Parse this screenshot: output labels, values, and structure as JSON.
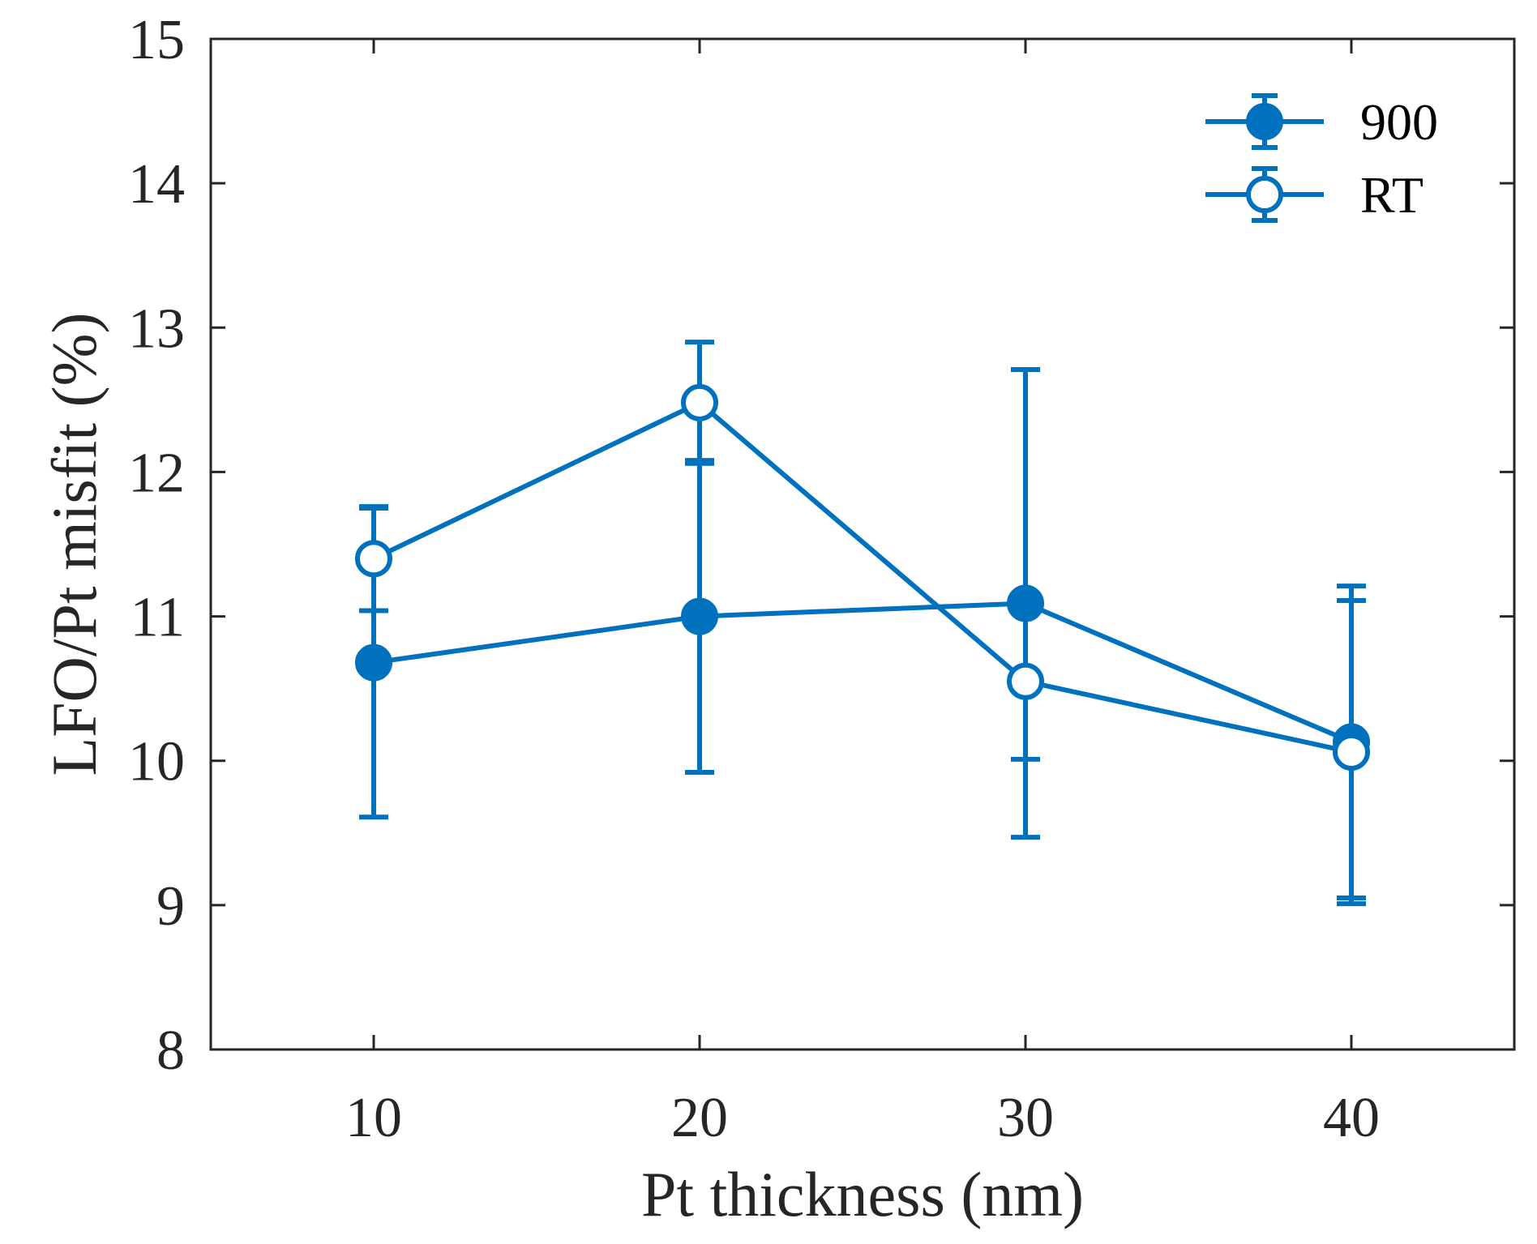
{
  "chart_data": {
    "type": "line",
    "title": "",
    "xlabel": "Pt thickness (nm)",
    "ylabel": "LFO/Pt misfit (%)",
    "xlim": [
      5,
      45
    ],
    "ylim": [
      8,
      15
    ],
    "xticks": [
      10,
      20,
      30,
      40
    ],
    "yticks": [
      8,
      9,
      10,
      11,
      12,
      13,
      14,
      15
    ],
    "grid": false,
    "legend_position": "top-right",
    "series_color": "#0072BD",
    "axis_color": "#262626",
    "series": [
      {
        "name": "900",
        "marker": "filled-circle",
        "x": [
          10,
          20,
          30,
          40
        ],
        "y": [
          10.68,
          11.0,
          11.09,
          10.13
        ],
        "error": [
          1.07,
          1.08,
          1.62,
          1.08
        ]
      },
      {
        "name": "RT",
        "marker": "open-circle",
        "x": [
          10,
          20,
          30,
          40
        ],
        "y": [
          11.4,
          12.48,
          10.55,
          10.06
        ],
        "error": [
          0.36,
          0.42,
          0.54,
          1.05
        ]
      }
    ]
  }
}
